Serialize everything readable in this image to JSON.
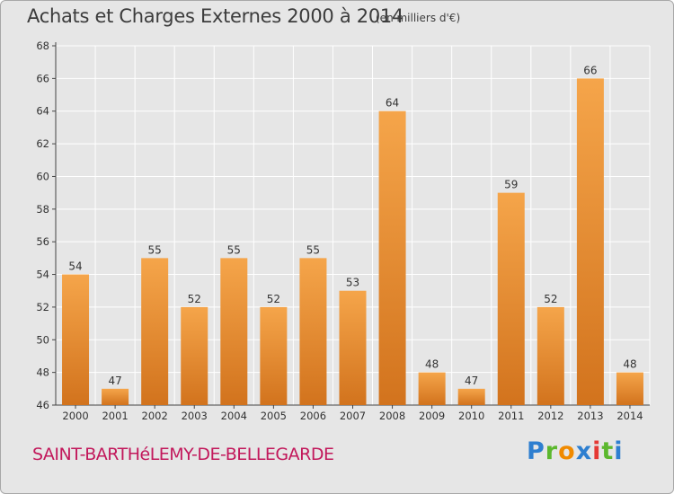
{
  "header": {
    "title": "Achats et Charges Externes 2000 à 2014",
    "subtitle": "(en milliers d'€)"
  },
  "footer": {
    "commune": "SAINT-BARTHéLEMY-DE-BELLEGARDE",
    "logo_text": "Proxiti"
  },
  "colors": {
    "bar_light": "#f5a54a",
    "bar_dark": "#d2731d",
    "background": "#e6e6e6",
    "grid": "#ffffff",
    "commune_text": "#c2185b"
  },
  "chart_data": {
    "type": "bar",
    "title": "Achats et Charges Externes 2000 à 2014",
    "subtitle": "(en milliers d'€)",
    "categories": [
      "2000",
      "2001",
      "2002",
      "2003",
      "2004",
      "2005",
      "2006",
      "2007",
      "2008",
      "2009",
      "2010",
      "2011",
      "2012",
      "2013",
      "2014"
    ],
    "values": [
      54,
      47,
      55,
      52,
      55,
      52,
      55,
      53,
      64,
      48,
      47,
      59,
      52,
      66,
      48
    ],
    "ylim": [
      46,
      68
    ],
    "yticks": [
      46,
      48,
      50,
      52,
      54,
      56,
      58,
      60,
      62,
      64,
      66,
      68
    ],
    "xlabel": "",
    "ylabel": "",
    "grid": true,
    "data_labels": true
  }
}
